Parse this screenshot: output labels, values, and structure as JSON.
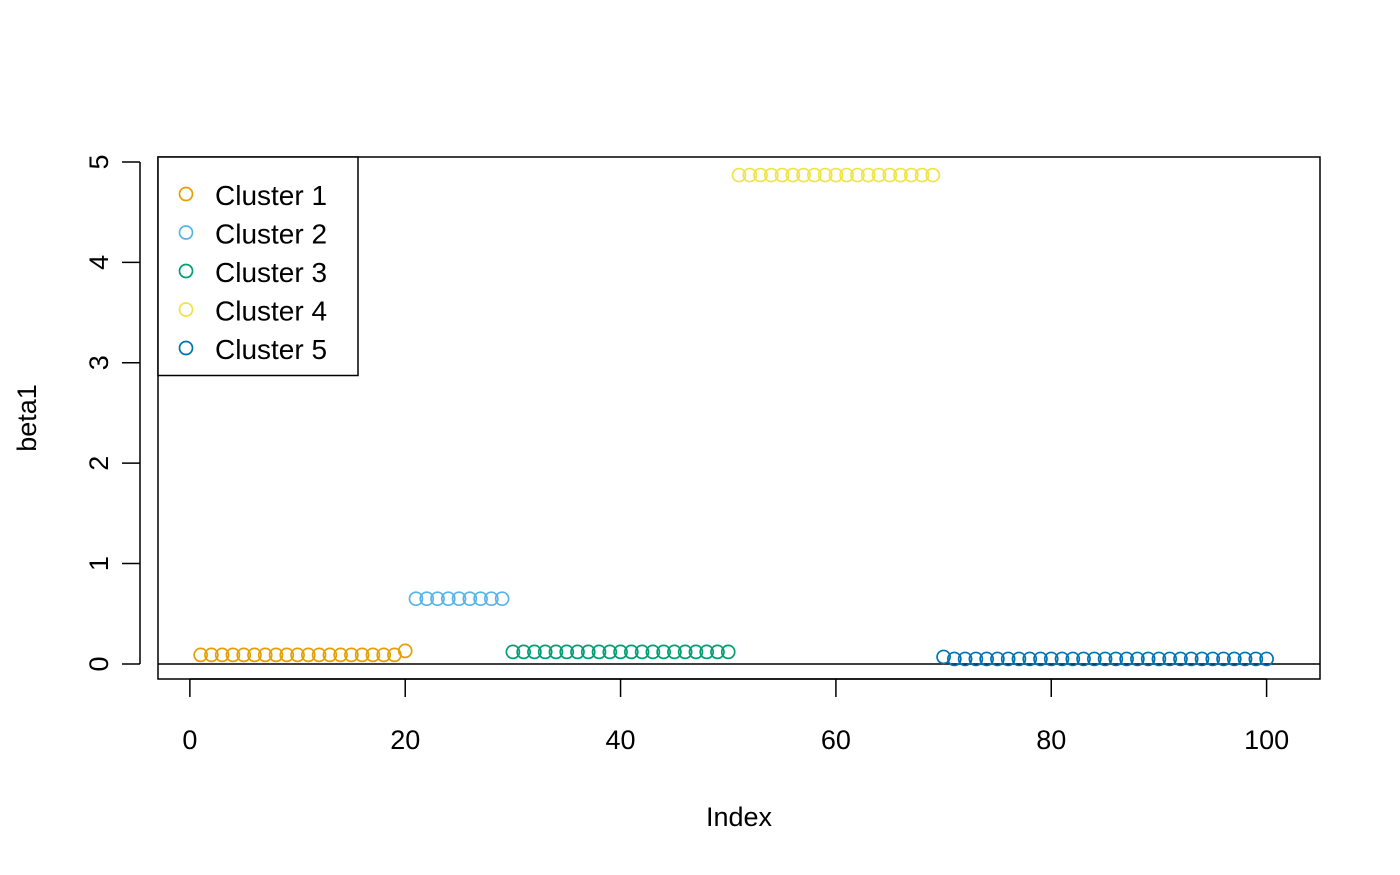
{
  "chart_data": {
    "type": "scatter",
    "title": "",
    "xlabel": "Index",
    "ylabel": "beta1",
    "xlim": [
      -2.96,
      104.96
    ],
    "ylim": [
      -0.15,
      5.05
    ],
    "xticks": [
      0,
      20,
      40,
      60,
      80,
      100
    ],
    "yticks": [
      0,
      1,
      2,
      3,
      4,
      5
    ],
    "grid": false,
    "reference_line_y": 0,
    "legend": {
      "placement": "top-left"
    },
    "series": [
      {
        "name": "Cluster 1",
        "color": "#E69F00",
        "x": [
          1,
          2,
          3,
          4,
          5,
          6,
          7,
          8,
          9,
          10,
          11,
          12,
          13,
          14,
          15,
          16,
          17,
          18,
          19,
          20
        ],
        "y": [
          0.09,
          0.09,
          0.09,
          0.09,
          0.09,
          0.09,
          0.09,
          0.09,
          0.09,
          0.09,
          0.09,
          0.09,
          0.09,
          0.09,
          0.09,
          0.09,
          0.09,
          0.09,
          0.09,
          0.13
        ]
      },
      {
        "name": "Cluster 2",
        "color": "#56B4E9",
        "x": [
          21,
          22,
          23,
          24,
          25,
          26,
          27,
          28,
          29
        ],
        "y": [
          0.65,
          0.65,
          0.65,
          0.65,
          0.65,
          0.65,
          0.65,
          0.65,
          0.65
        ]
      },
      {
        "name": "Cluster 3",
        "color": "#009E73",
        "x": [
          30,
          31,
          32,
          33,
          34,
          35,
          36,
          37,
          38,
          39,
          40,
          41,
          42,
          43,
          44,
          45,
          46,
          47,
          48,
          49,
          50
        ],
        "y": [
          0.12,
          0.12,
          0.12,
          0.12,
          0.12,
          0.12,
          0.12,
          0.12,
          0.12,
          0.12,
          0.12,
          0.12,
          0.12,
          0.12,
          0.12,
          0.12,
          0.12,
          0.12,
          0.12,
          0.12,
          0.12
        ]
      },
      {
        "name": "Cluster 4",
        "color": "#F0E442",
        "x": [
          51,
          52,
          53,
          54,
          55,
          56,
          57,
          58,
          59,
          60,
          61,
          62,
          63,
          64,
          65,
          66,
          67,
          68,
          69
        ],
        "y": [
          4.87,
          4.87,
          4.87,
          4.87,
          4.87,
          4.87,
          4.87,
          4.87,
          4.87,
          4.87,
          4.87,
          4.87,
          4.87,
          4.87,
          4.87,
          4.87,
          4.87,
          4.87,
          4.87
        ]
      },
      {
        "name": "Cluster 5",
        "color": "#0072B2",
        "x": [
          70,
          71,
          72,
          73,
          74,
          75,
          76,
          77,
          78,
          79,
          80,
          81,
          82,
          83,
          84,
          85,
          86,
          87,
          88,
          89,
          90,
          91,
          92,
          93,
          94,
          95,
          96,
          97,
          98,
          99,
          100
        ],
        "y": [
          0.07,
          0.05,
          0.05,
          0.05,
          0.05,
          0.05,
          0.05,
          0.05,
          0.05,
          0.05,
          0.05,
          0.05,
          0.05,
          0.05,
          0.05,
          0.05,
          0.05,
          0.05,
          0.05,
          0.05,
          0.05,
          0.05,
          0.05,
          0.05,
          0.05,
          0.05,
          0.05,
          0.05,
          0.05,
          0.05,
          0.05
        ]
      }
    ]
  }
}
